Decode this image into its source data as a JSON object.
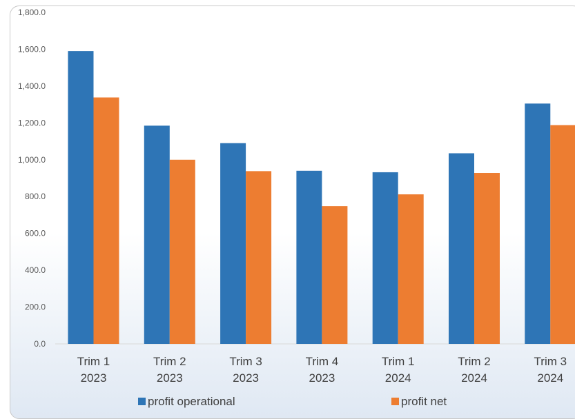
{
  "chart_data": {
    "type": "bar",
    "categories": [
      [
        "Trim 1",
        "2023"
      ],
      [
        "Trim 2",
        "2023"
      ],
      [
        "Trim 3",
        "2023"
      ],
      [
        "Trim 4",
        "2023"
      ],
      [
        "Trim 1",
        "2024"
      ],
      [
        "Trim 2",
        "2024"
      ],
      [
        "Trim 3",
        "2024"
      ]
    ],
    "series": [
      {
        "name": "profit operational",
        "color": "#2e75b6",
        "values": [
          1590,
          1185,
          1090,
          940,
          932,
          1035,
          1305
        ]
      },
      {
        "name": "profit net",
        "color": "#ed7d31",
        "values": [
          1338,
          1000,
          938,
          748,
          812,
          928,
          1188
        ]
      }
    ],
    "ylim": [
      0,
      1800
    ],
    "yticks": [
      "0.0",
      "200.0",
      "400.0",
      "600.0",
      "800.0",
      "1,000.0",
      "1,200.0",
      "1,400.0",
      "1,600.0",
      "1,800.0"
    ],
    "grid": false,
    "legend_position": "bottom"
  }
}
